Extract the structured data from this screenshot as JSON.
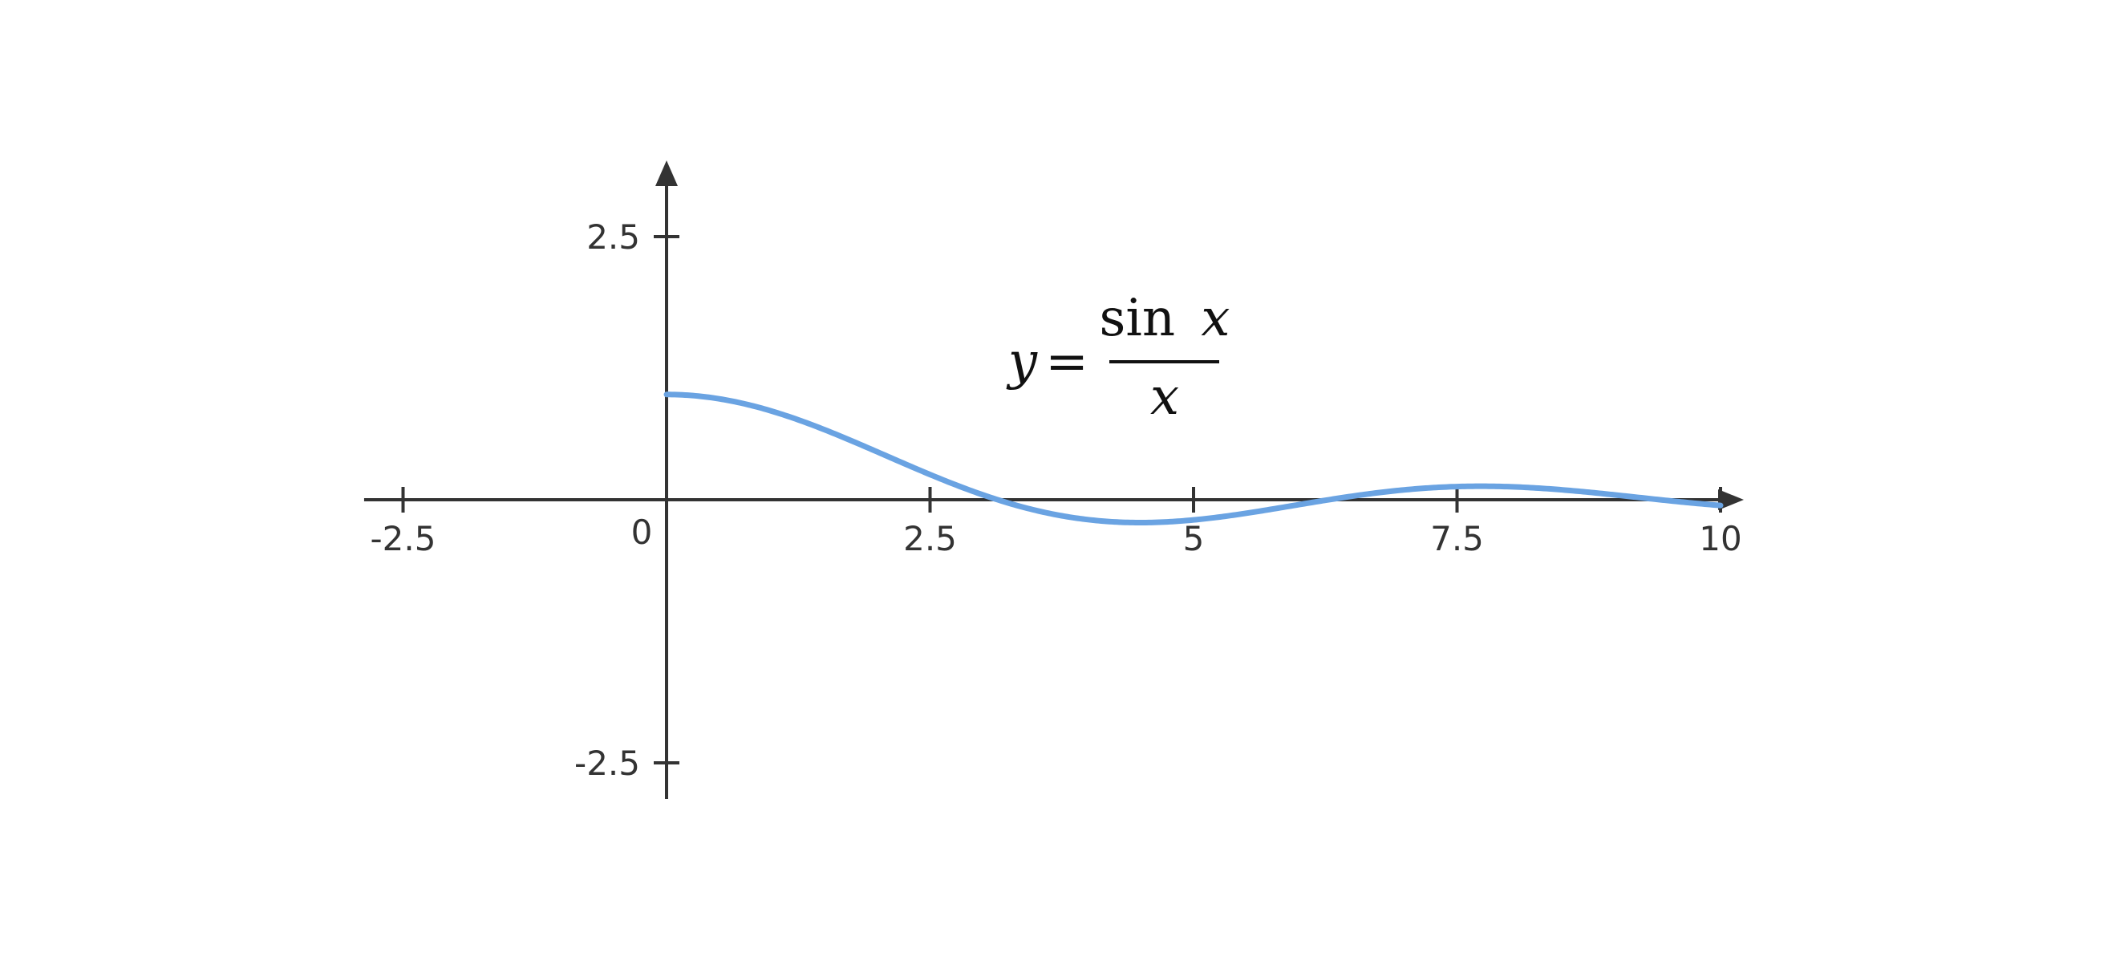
{
  "chart_data": {
    "type": "line",
    "title": "",
    "xlabel": "",
    "ylabel": "",
    "xlim": [
      -2.9,
      10.2
    ],
    "ylim": [
      -2.9,
      3.3
    ],
    "x_ticks": [
      -2.5,
      2.5,
      5,
      7.5,
      10
    ],
    "x_tick_labels": [
      "-2.5",
      "2.5",
      "5",
      "7.5",
      "10"
    ],
    "y_ticks": [
      2.5,
      -2.5
    ],
    "y_tick_labels": [
      "2.5",
      "-2.5"
    ],
    "origin_label": "0",
    "grid": false,
    "legend": "none",
    "annotation": {
      "lhs": "y",
      "equals": "=",
      "numerator_func": "sin",
      "numerator_var": "x",
      "denominator": "x"
    },
    "series": [
      {
        "function": "sin(x)/x",
        "color": "#6aa3e2",
        "x_range": [
          0,
          10
        ],
        "x": [
          0,
          0.5,
          1,
          1.5,
          2,
          2.5,
          3,
          3.5,
          4,
          4.5,
          5,
          5.5,
          6,
          6.5,
          7,
          7.5,
          8,
          8.5,
          9,
          9.5,
          10
        ],
        "y": [
          1,
          0.959,
          0.841,
          0.665,
          0.455,
          0.239,
          0.047,
          -0.1,
          -0.189,
          -0.217,
          -0.192,
          -0.128,
          -0.047,
          0.033,
          0.094,
          0.125,
          0.124,
          0.094,
          0.046,
          -0.008,
          -0.054
        ]
      }
    ]
  },
  "colors": {
    "axis": "#333333",
    "curve": "#6aa3e2"
  }
}
